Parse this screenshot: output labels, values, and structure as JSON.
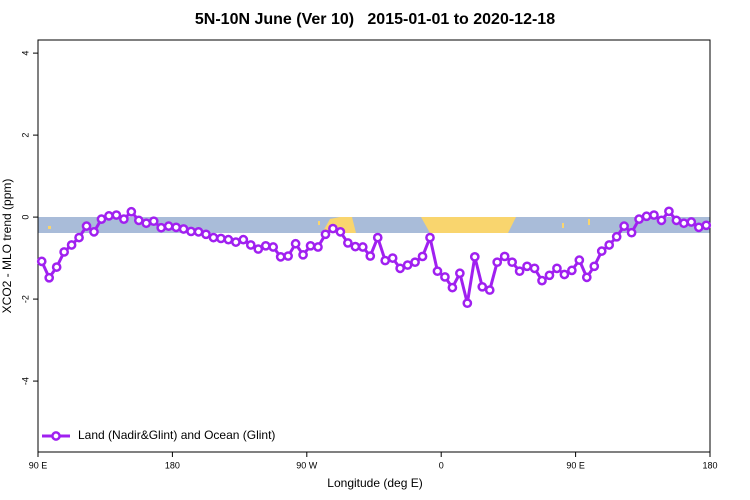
{
  "chart_data": {
    "type": "line",
    "title": "5N-10N June (Ver 10)   2015-01-01 to 2020-12-18",
    "xlabel": "Longitude (deg E)",
    "ylabel": "XCO2 - MLO trend (ppm)",
    "xlim": [
      90,
      540
    ],
    "ylim": [
      -5.73,
      4.32
    ],
    "xticks": [
      {
        "value": 90,
        "label": "90 E"
      },
      180,
      {
        "value": 270,
        "label": "90 W"
      },
      {
        "value": 360,
        "label": "0"
      },
      {
        "value": 450,
        "label": "90 E"
      },
      {
        "value": 540,
        "label": "180"
      }
    ],
    "yticks": [
      -4,
      -2,
      0,
      2,
      4
    ],
    "legend": "bottom-left",
    "x": [
      92.5,
      97.5,
      102.5,
      107.5,
      112.5,
      117.5,
      122.5,
      127.5,
      132.5,
      137.5,
      142.5,
      147.5,
      152.5,
      157.5,
      162.5,
      167.5,
      172.5,
      177.5,
      182.5,
      187.5,
      192.5,
      197.5,
      202.5,
      207.5,
      212.5,
      217.5,
      222.5,
      227.5,
      232.5,
      237.5,
      242.5,
      247.5,
      252.5,
      257.5,
      262.5,
      267.5,
      272.5,
      277.5,
      282.5,
      287.5,
      292.5,
      297.5,
      302.5,
      307.5,
      312.5,
      317.5,
      322.5,
      327.5,
      332.5,
      337.5,
      342.5,
      347.5,
      352.5,
      357.5,
      362.5,
      367.5,
      372.5,
      377.5,
      382.5,
      387.5,
      392.5,
      397.5,
      402.5,
      407.5,
      412.5,
      417.5,
      422.5,
      427.5,
      432.5,
      437.5,
      442.5,
      447.5,
      452.5,
      457.5,
      462.5,
      467.5,
      472.5,
      477.5,
      482.5,
      487.5,
      492.5,
      497.5,
      502.5,
      507.5,
      512.5,
      517.5,
      522.5,
      527.5,
      532.5,
      537.5
    ],
    "series": [
      {
        "name": "Land (Nadir&Glint) and Ocean (Glint)",
        "color": "#a020f0",
        "values": [
          -1.08,
          -1.48,
          -1.22,
          -0.85,
          -0.68,
          -0.5,
          -0.22,
          -0.36,
          -0.05,
          0.03,
          0.05,
          -0.05,
          0.13,
          -0.08,
          -0.15,
          -0.1,
          -0.26,
          -0.22,
          -0.25,
          -0.29,
          -0.35,
          -0.36,
          -0.42,
          -0.5,
          -0.52,
          -0.55,
          -0.61,
          -0.55,
          -0.68,
          -0.78,
          -0.7,
          -0.73,
          -0.97,
          -0.95,
          -0.65,
          -0.92,
          -0.7,
          -0.73,
          -0.42,
          -0.28,
          -0.36,
          -0.63,
          -0.72,
          -0.73,
          -0.95,
          -0.5,
          -1.06,
          -1.0,
          -1.25,
          -1.17,
          -1.1,
          -0.96,
          -0.5,
          -1.32,
          -1.46,
          -1.72,
          -1.37,
          -2.1,
          -0.97,
          -1.7,
          -1.78,
          -1.1,
          -0.96,
          -1.1,
          -1.32,
          -1.2,
          -1.25,
          -1.55,
          -1.42,
          -1.25,
          -1.4,
          -1.3,
          -1.05,
          -1.47,
          -1.2,
          -0.83,
          -0.68,
          -0.48,
          -0.22,
          -0.38,
          -0.05,
          0.02,
          0.05,
          -0.08,
          0.14,
          -0.08,
          -0.15,
          -0.12,
          -0.25,
          -0.2
        ]
      }
    ]
  }
}
